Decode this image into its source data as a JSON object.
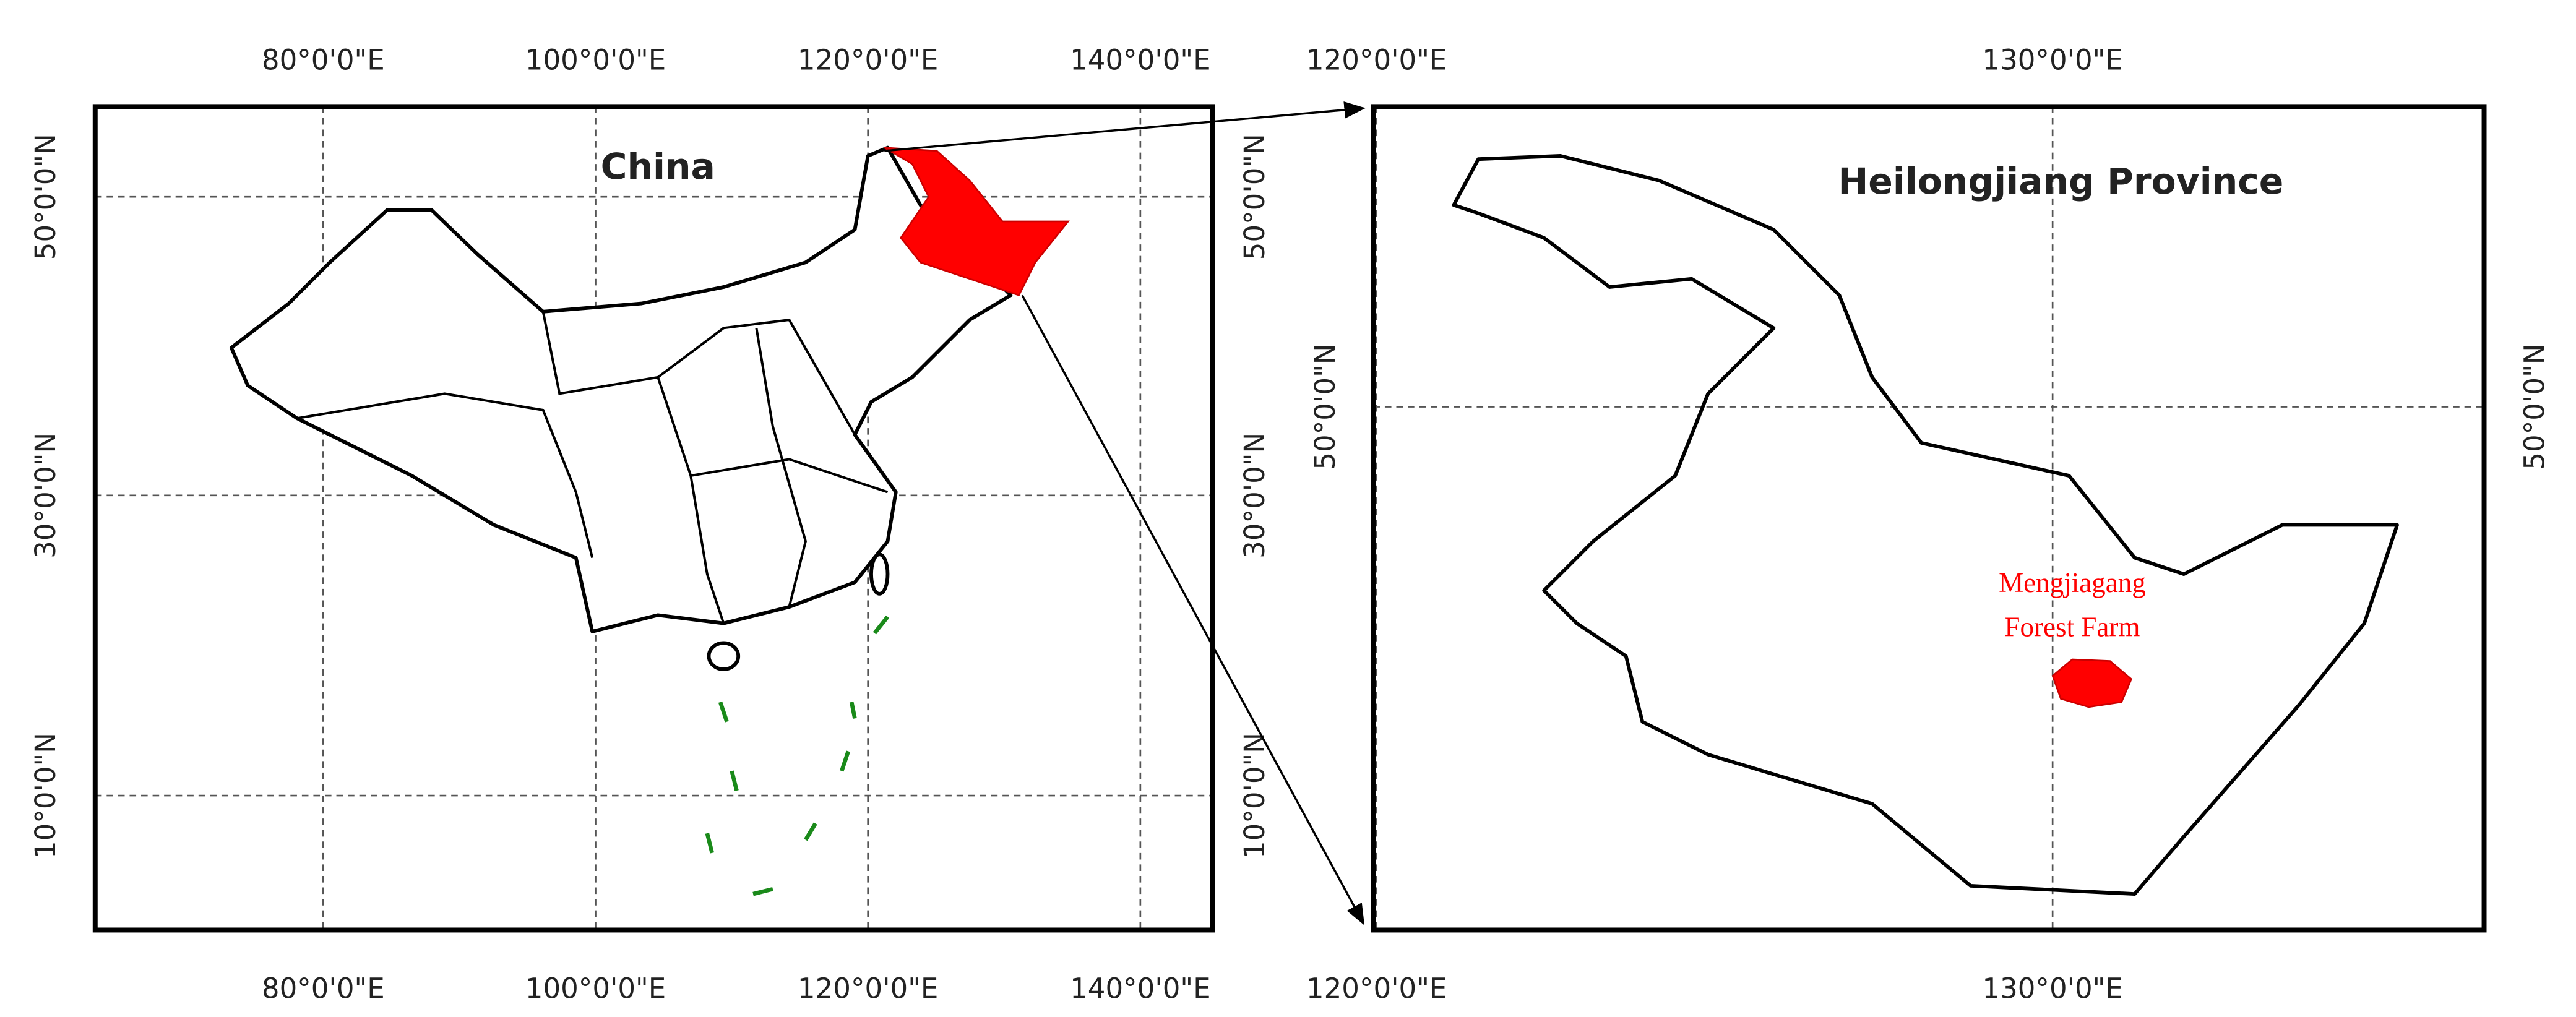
{
  "left_map": {
    "label": "China",
    "top_ticks": [
      "80°0'0\"E",
      "100°0'0\"E",
      "120°0'0\"E",
      "140°0'0\"E"
    ],
    "bottom_ticks": [
      "80°0'0\"E",
      "100°0'0\"E",
      "120°0'0\"E",
      "140°0'0\"E"
    ],
    "left_ticks": [
      "50°0'0\"N",
      "30°0'0\"N",
      "10°0'0\"N"
    ],
    "right_ticks": [
      "50°0'0\"N",
      "30°0'0\"N",
      "10°0'0\"N"
    ]
  },
  "right_map": {
    "label": "Heilongjiang Province",
    "site_label": [
      "Mengjiagang",
      "Forest Farm"
    ],
    "top_ticks": [
      "120°0'0\"E",
      "130°0'0\"E"
    ],
    "bottom_ticks": [
      "120°0'0\"E",
      "130°0'0\"E"
    ],
    "left_ticks": [
      "50°0'0\"N"
    ],
    "right_ticks": [
      "50°0'0\"N"
    ]
  }
}
